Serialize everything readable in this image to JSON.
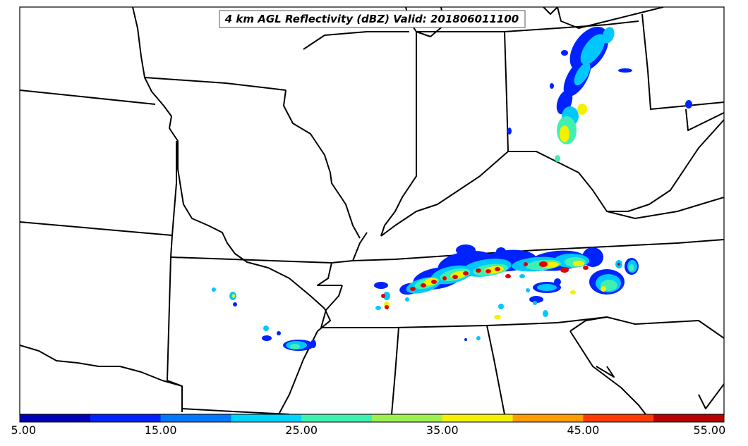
{
  "title": "4 km AGL Reflectivity (dBZ) Valid: 201806011100",
  "colorbar": {
    "tick_labels": [
      "5.00",
      "15.00",
      "25.00",
      "35.00",
      "45.00",
      "55.00"
    ],
    "colors": [
      "#0000b8",
      "#0022ff",
      "#0078ff",
      "#00d4ff",
      "#40f0b0",
      "#9cf050",
      "#f4f000",
      "#ff9c00",
      "#ff3a00",
      "#b80000"
    ]
  },
  "palette": {
    "blue": "#0022ff",
    "cyan": "#00c8ff",
    "green": "#40f0b0",
    "yellow": "#f4f000",
    "orange": "#ff9c00",
    "red": "#e00000"
  }
}
